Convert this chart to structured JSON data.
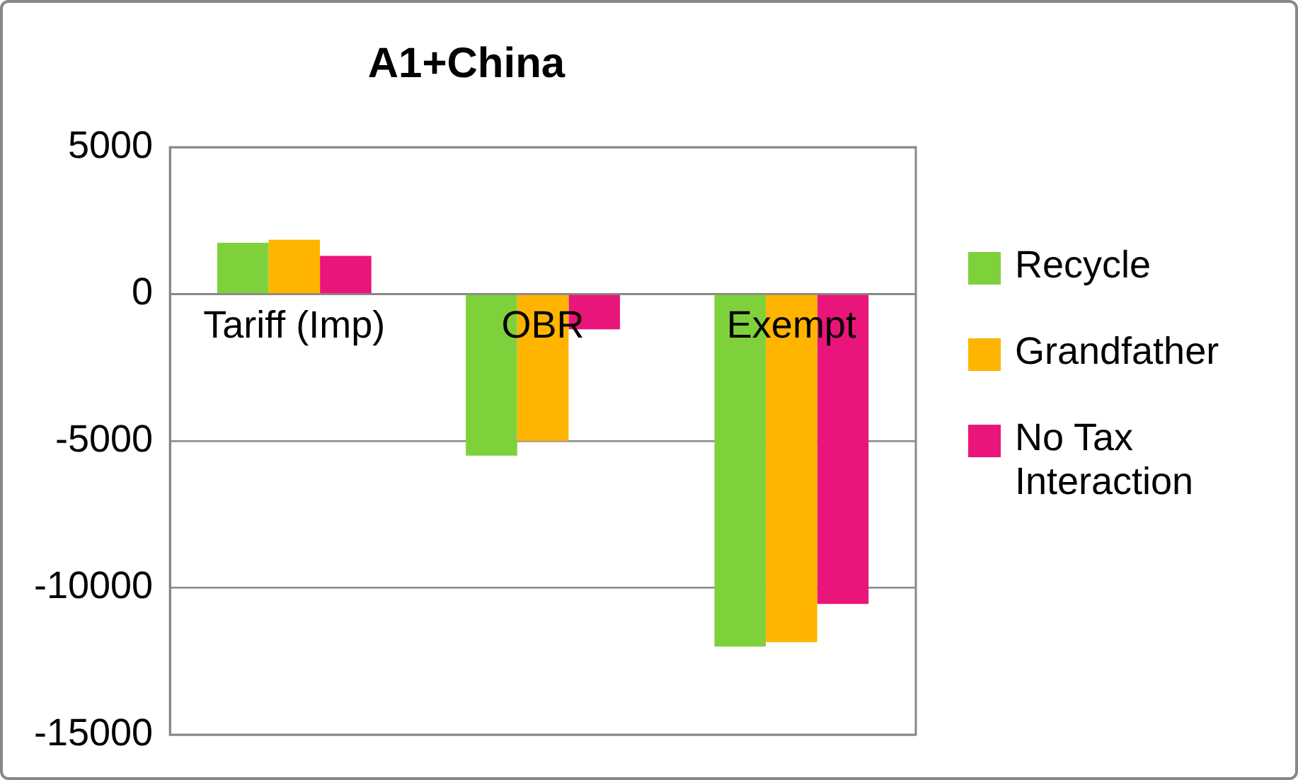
{
  "chart_data": {
    "type": "bar",
    "title": "A1+China",
    "categories": [
      "Tariff (Imp)",
      "OBR",
      "Exempt"
    ],
    "series": [
      {
        "name": "Recycle",
        "color": "#7fd13b",
        "values": [
          1750,
          -5500,
          -12000
        ]
      },
      {
        "name": "Grandfather",
        "color": "#ffb400",
        "values": [
          1850,
          -5000,
          -11850
        ]
      },
      {
        "name": "No Tax Interaction",
        "color": "#ea157a",
        "values": [
          1300,
          -1200,
          -10550
        ]
      }
    ],
    "ylim": [
      -15000,
      5000
    ],
    "yticks": [
      -15000,
      -10000,
      -5000,
      0,
      5000
    ],
    "grid": "y",
    "legend": "right"
  }
}
